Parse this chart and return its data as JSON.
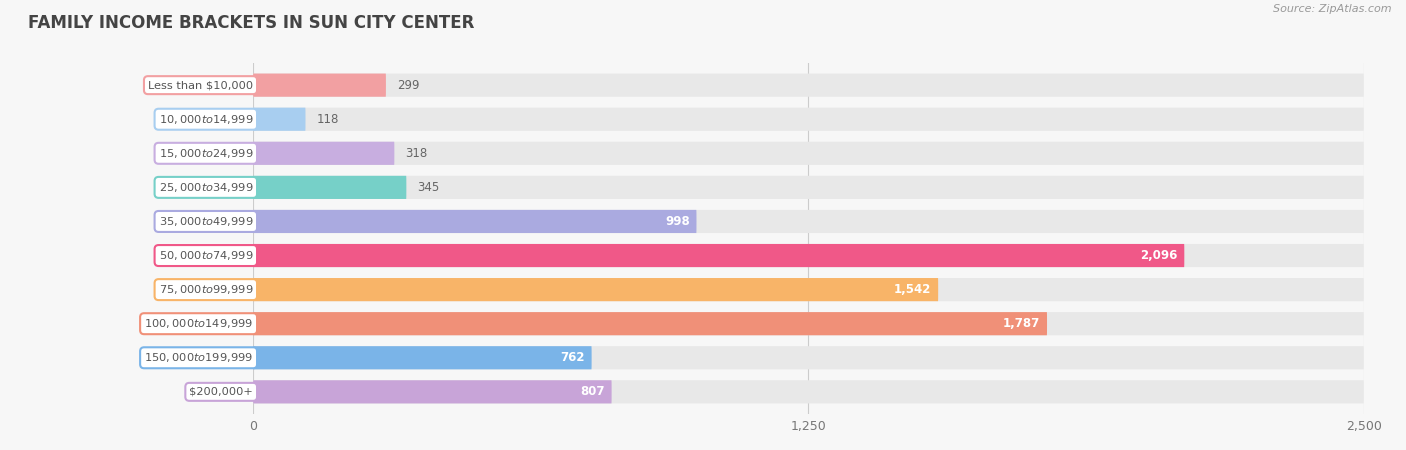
{
  "title": "FAMILY INCOME BRACKETS IN SUN CITY CENTER",
  "source": "Source: ZipAtlas.com",
  "categories": [
    "Less than $10,000",
    "$10,000 to $14,999",
    "$15,000 to $24,999",
    "$25,000 to $34,999",
    "$35,000 to $49,999",
    "$50,000 to $74,999",
    "$75,000 to $99,999",
    "$100,000 to $149,999",
    "$150,000 to $199,999",
    "$200,000+"
  ],
  "values": [
    299,
    118,
    318,
    345,
    998,
    2096,
    1542,
    1787,
    762,
    807
  ],
  "bar_colors": [
    "#f2a0a2",
    "#a8cef0",
    "#c8aee0",
    "#76d0c8",
    "#aaaae0",
    "#f05888",
    "#f8b468",
    "#f09078",
    "#7ab4e8",
    "#c8a4d8"
  ],
  "xlim": [
    0,
    2500
  ],
  "xticks": [
    0,
    1250,
    2500
  ],
  "background_color": "#f7f7f7",
  "bar_bg_color": "#e8e8e8",
  "title_color": "#444444",
  "source_color": "#999999",
  "label_text_color": "#555555",
  "value_outside_color": "#666666",
  "value_inside_color": "#ffffff"
}
